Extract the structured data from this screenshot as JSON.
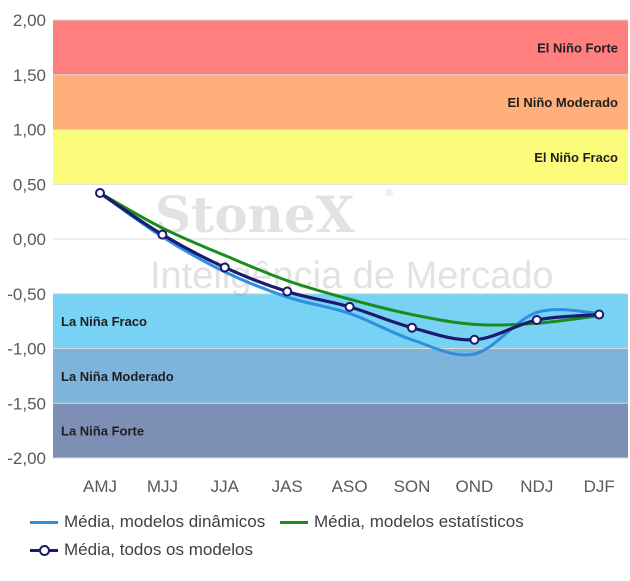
{
  "chart_data": {
    "type": "line",
    "categories": [
      "AMJ",
      "MJJ",
      "JJA",
      "JAS",
      "ASO",
      "SON",
      "OND",
      "NDJ",
      "DJF"
    ],
    "series": [
      {
        "name": "Média, modelos dinâmicos",
        "color": "#2e8fe0",
        "values": [
          0.42,
          0.02,
          -0.3,
          -0.53,
          -0.68,
          -0.92,
          -1.05,
          -0.67,
          -0.68
        ]
      },
      {
        "name": "Média, modelos estatísticos",
        "color": "#1a8c1a",
        "values": [
          0.42,
          0.1,
          -0.15,
          -0.38,
          -0.55,
          -0.69,
          -0.78,
          -0.77,
          -0.7
        ]
      },
      {
        "name": "Média, todos os modelos",
        "color": "#1a1a6e",
        "markers": true,
        "values": [
          0.42,
          0.04,
          -0.26,
          -0.48,
          -0.62,
          -0.81,
          -0.92,
          -0.74,
          -0.69
        ]
      }
    ],
    "ylim": [
      -2.0,
      2.0
    ],
    "yticks": [
      "2,00",
      "1,50",
      "1,00",
      "0,50",
      "0,00",
      "-0,50",
      "-1,00",
      "-1,50",
      "-2,00"
    ],
    "ytick_values": [
      2.0,
      1.5,
      1.0,
      0.5,
      0.0,
      -0.5,
      -1.0,
      -1.5,
      -2.0
    ],
    "bands": [
      {
        "label": "El Niño Forte",
        "from": 1.5,
        "to": 2.0,
        "color": "#ff7f7f",
        "label_side": "right"
      },
      {
        "label": "El Niño Moderado",
        "from": 1.0,
        "to": 1.5,
        "color": "#ffb07a",
        "label_side": "right"
      },
      {
        "label": "El Niño Fraco",
        "from": 0.5,
        "to": 1.0,
        "color": "#fcfc7c",
        "label_side": "right"
      },
      {
        "label": "La Niña Fraco",
        "from": -1.0,
        "to": -0.5,
        "color": "#78d2f4",
        "label_side": "left"
      },
      {
        "label": "La Niña Moderado",
        "from": -1.5,
        "to": -1.0,
        "color": "#7db4dc",
        "label_side": "left"
      },
      {
        "label": "La Niña Forte",
        "from": -2.0,
        "to": -1.5,
        "color": "#7d8fb4",
        "label_side": "left"
      }
    ],
    "grid": true,
    "legend_position": "bottom"
  },
  "watermark": {
    "brand": "StoneX",
    "registered": "®",
    "subtitle": "Inteligência de Mercado"
  }
}
